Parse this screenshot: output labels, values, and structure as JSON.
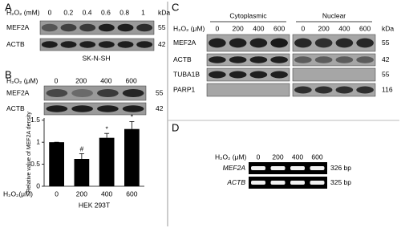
{
  "panel_a": {
    "label": "A",
    "treatment_label": "H₂O₂ (mM)",
    "concentrations": [
      "0",
      "0.2",
      "0.4",
      "0.6",
      "0.8",
      "1"
    ],
    "kda_label": "kDa",
    "rows": [
      {
        "name": "MEF2A",
        "kda": "55"
      },
      {
        "name": "ACTB",
        "kda": "42"
      }
    ],
    "cell_line": "SK-N-SH"
  },
  "panel_b": {
    "label": "B",
    "treatment_label": "H₂O₂ (μM)",
    "concentrations": [
      "0",
      "200",
      "400",
      "600"
    ],
    "rows": [
      {
        "name": "MEF2A",
        "kda": "55"
      },
      {
        "name": "ACTB",
        "kda": "42"
      }
    ]
  },
  "chart_data": {
    "type": "bar",
    "y_label": "Relative value of MEF2A density",
    "x_label": "H₂O₂(μM)",
    "caption": "HEK 293T",
    "categories": [
      "0",
      "200",
      "400",
      "600"
    ],
    "values": [
      1,
      0.62,
      1.1,
      1.3
    ],
    "errors": [
      0,
      0.12,
      0.1,
      0.17
    ],
    "significance": [
      null,
      "#",
      "*",
      "*"
    ],
    "color": "#000000",
    "ylim": [
      0,
      1.55
    ],
    "yticks": [
      0,
      0.5,
      1,
      1.5
    ]
  },
  "panel_c": {
    "label": "C",
    "treatment_label": "H₂O₂ (μM)",
    "fractions": [
      "Cytoplasmic",
      "Nuclear"
    ],
    "concentrations": [
      "0",
      "200",
      "400",
      "600"
    ],
    "kda_label": "kDa",
    "rows": [
      {
        "name": "MEF2A",
        "kda": "55"
      },
      {
        "name": "ACTB",
        "kda": "42"
      },
      {
        "name": "TUBA1B",
        "kda": "55"
      },
      {
        "name": "PARP1",
        "kda": "116"
      }
    ]
  },
  "panel_d": {
    "label": "D",
    "treatment_label": "H₂O₂ (μM)",
    "concentrations": [
      "0",
      "200",
      "400",
      "600"
    ],
    "rows": [
      {
        "name": "MEF2A",
        "size": "326 bp"
      },
      {
        "name": "ACTB",
        "size": "325 bp"
      }
    ]
  }
}
